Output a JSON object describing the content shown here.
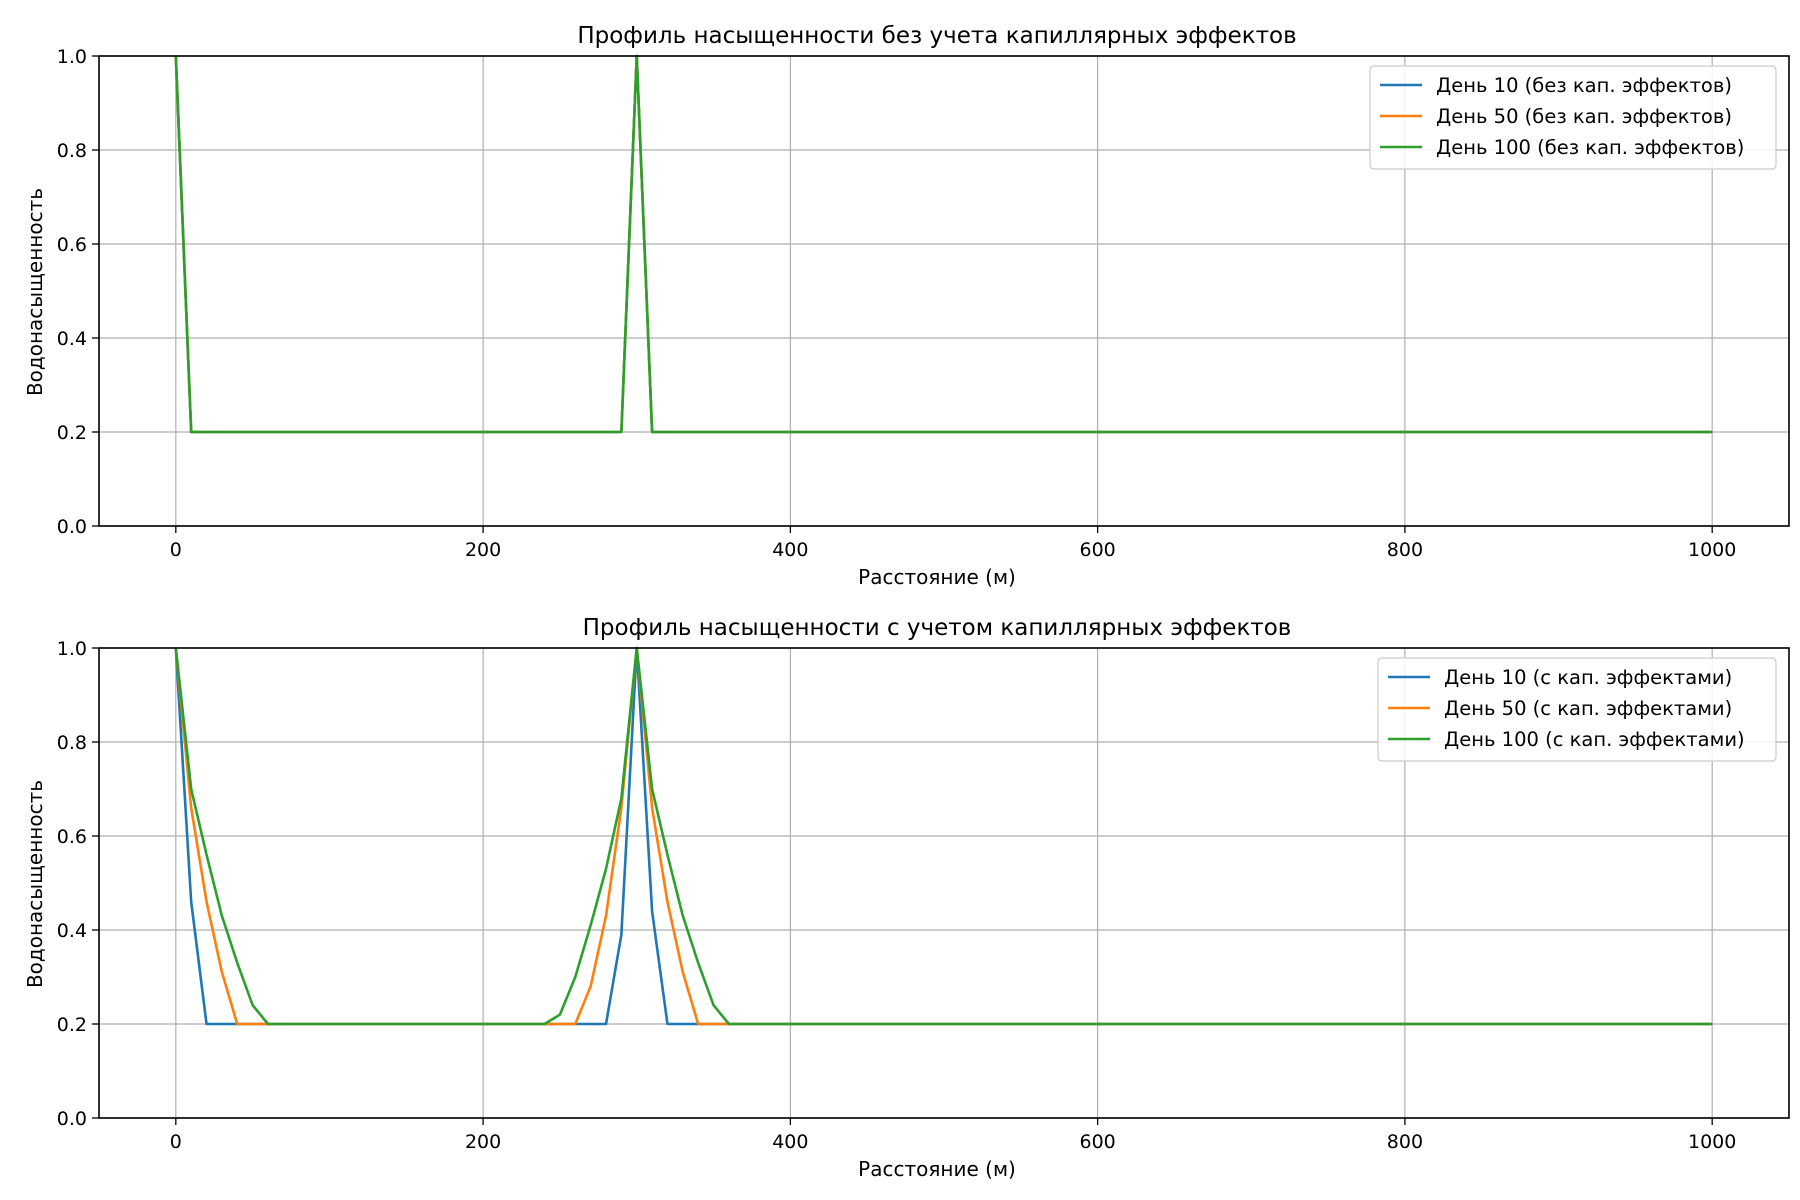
{
  "chart_data": [
    {
      "type": "line",
      "title": "Профиль насыщенности без учета капиллярных эффектов",
      "xlabel": "Расстояние (м)",
      "ylabel": "Водонасыщенность",
      "xlim": [
        -50,
        1050
      ],
      "ylim": [
        0,
        1
      ],
      "x_ticks": [
        0,
        200,
        400,
        600,
        800,
        1000
      ],
      "y_ticks": [
        0.0,
        0.2,
        0.4,
        0.6,
        0.8,
        1.0
      ],
      "x_tick_labels": [
        "0",
        "200",
        "400",
        "600",
        "800",
        "1000"
      ],
      "y_tick_labels": [
        "0.0",
        "0.2",
        "0.4",
        "0.6",
        "0.8",
        "1.0"
      ],
      "grid": true,
      "legend_position": "top-right",
      "series": [
        {
          "name": "День 10 (без кап. эффектов)",
          "color": "#1f77b4",
          "x": [
            0,
            10,
            290,
            300,
            310,
            1000
          ],
          "y": [
            1.0,
            0.2,
            0.2,
            1.0,
            0.2,
            0.2
          ]
        },
        {
          "name": "День 50 (без кап. эффектов)",
          "color": "#ff7f0e",
          "x": [
            0,
            10,
            290,
            300,
            310,
            1000
          ],
          "y": [
            1.0,
            0.2,
            0.2,
            1.0,
            0.2,
            0.2
          ]
        },
        {
          "name": "День 100 (без кап. эффектов)",
          "color": "#2ca02c",
          "x": [
            0,
            10,
            290,
            300,
            310,
            1000
          ],
          "y": [
            1.0,
            0.2,
            0.2,
            1.0,
            0.2,
            0.2
          ]
        }
      ]
    },
    {
      "type": "line",
      "title": "Профиль насыщенности с учетом капиллярных эффектов",
      "xlabel": "Расстояние (м)",
      "ylabel": "Водонасыщенность",
      "xlim": [
        -50,
        1050
      ],
      "ylim": [
        0,
        1
      ],
      "x_ticks": [
        0,
        200,
        400,
        600,
        800,
        1000
      ],
      "y_ticks": [
        0.0,
        0.2,
        0.4,
        0.6,
        0.8,
        1.0
      ],
      "x_tick_labels": [
        "0",
        "200",
        "400",
        "600",
        "800",
        "1000"
      ],
      "y_tick_labels": [
        "0.0",
        "0.2",
        "0.4",
        "0.6",
        "0.8",
        "1.0"
      ],
      "grid": true,
      "legend_position": "top-right",
      "series": [
        {
          "name": "День 10 (с кап. эффектами)",
          "color": "#1f77b4",
          "x": [
            0,
            10,
            20,
            280,
            290,
            300,
            310,
            320,
            1000
          ],
          "y": [
            1.0,
            0.46,
            0.2,
            0.2,
            0.39,
            1.0,
            0.44,
            0.2,
            0.2
          ]
        },
        {
          "name": "День 50 (с кап. эффектами)",
          "color": "#ff7f0e",
          "x": [
            0,
            10,
            20,
            30,
            40,
            260,
            270,
            280,
            290,
            300,
            310,
            320,
            330,
            340,
            1000
          ],
          "y": [
            1.0,
            0.66,
            0.46,
            0.31,
            0.2,
            0.2,
            0.28,
            0.43,
            0.66,
            1.0,
            0.66,
            0.46,
            0.31,
            0.2,
            0.2
          ]
        },
        {
          "name": "День 100 (с кап. эффектами)",
          "color": "#2ca02c",
          "x": [
            0,
            10,
            20,
            30,
            40,
            50,
            60,
            240,
            250,
            260,
            270,
            280,
            290,
            300,
            310,
            320,
            330,
            340,
            350,
            360,
            1000
          ],
          "y": [
            1.0,
            0.7,
            0.56,
            0.43,
            0.33,
            0.24,
            0.2,
            0.2,
            0.22,
            0.3,
            0.41,
            0.53,
            0.68,
            1.0,
            0.7,
            0.56,
            0.43,
            0.33,
            0.24,
            0.2,
            0.2
          ]
        }
      ]
    }
  ]
}
